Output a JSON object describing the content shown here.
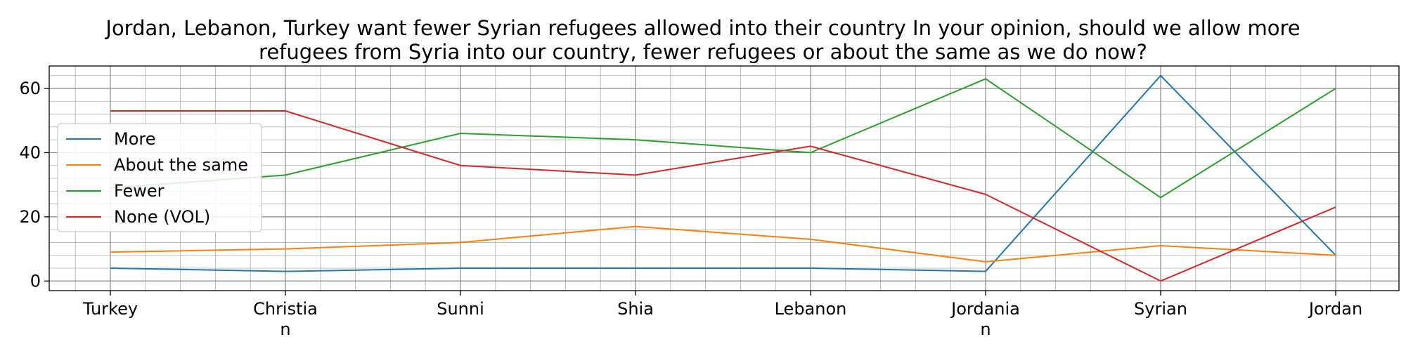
{
  "chart_data": {
    "type": "line",
    "title_lines": [
      "Jordan, Lebanon, Turkey want fewer Syrian refugees allowed into their country In your opinion, should we allow more",
      "refugees from Syria into our country, fewer refugees or about the same as we do now?"
    ],
    "categories": [
      "Turkey",
      "Christian",
      "Sunni",
      "Shia",
      "Lebanon",
      "Jordanian",
      "Syrian",
      "Jordan"
    ],
    "category_label_lines": [
      [
        "Turkey"
      ],
      [
        "Christia",
        "n"
      ],
      [
        "Sunni"
      ],
      [
        "Shia"
      ],
      [
        "Lebanon"
      ],
      [
        "Jordania",
        "n"
      ],
      [
        "Syrian"
      ],
      [
        "Jordan"
      ]
    ],
    "ylim": [
      -3,
      67
    ],
    "yticks": [
      0,
      20,
      40,
      60
    ],
    "grid": true,
    "legend_position": "left",
    "series": [
      {
        "name": "More",
        "color": "#1f77b4",
        "values": [
          4,
          3,
          4,
          4,
          4,
          3,
          64,
          8
        ]
      },
      {
        "name": "About the same",
        "color": "#ff7f0e",
        "values": [
          9,
          10,
          12,
          17,
          13,
          6,
          11,
          8
        ]
      },
      {
        "name": "Fewer",
        "color": "#2ca02c",
        "values": [
          29,
          33,
          46,
          44,
          40,
          63,
          26,
          60
        ]
      },
      {
        "name": "None (VOL)",
        "color": "#d62728",
        "values": [
          53,
          53,
          36,
          33,
          42,
          27,
          0,
          23
        ]
      }
    ]
  }
}
